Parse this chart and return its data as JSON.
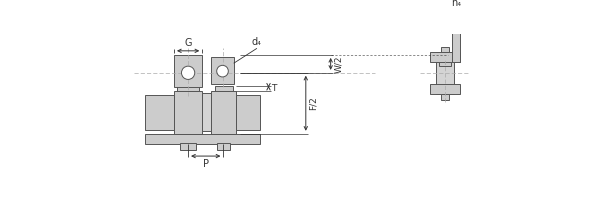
{
  "bg_color": "#ffffff",
  "part_color": "#cccccc",
  "part_edge": "#555555",
  "dim_color": "#333333",
  "dash_color": "#aaaaaa",
  "labels": {
    "G": "G",
    "d4": "d₄",
    "T": "T",
    "F2": "F/2",
    "W2": "W/2",
    "P": "P",
    "h4": "h₄"
  },
  "figsize": [
    6.0,
    2.0
  ],
  "dpi": 100
}
